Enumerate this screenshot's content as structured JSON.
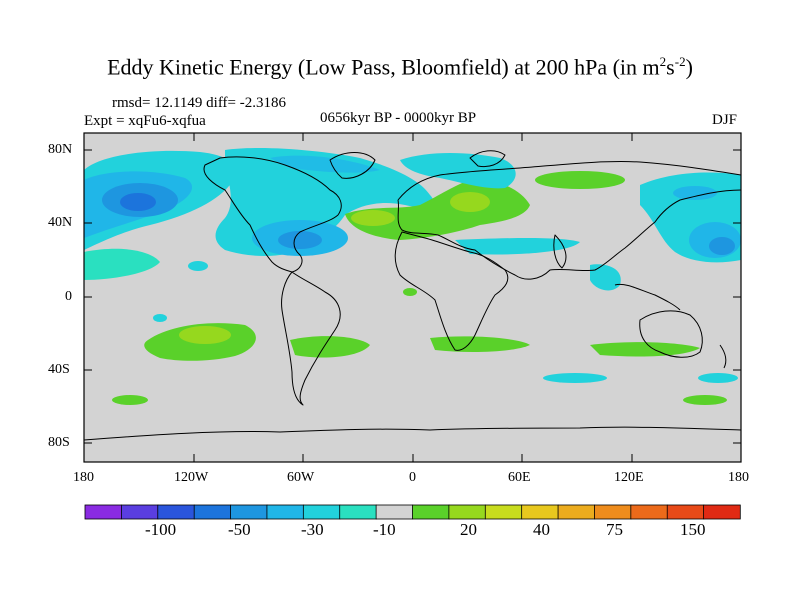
{
  "title": {
    "main": "Eddy Kinetic Energy (Low Pass, Bloomfield) at 200 hPa (in m",
    "exp1": "2",
    "unit2": "s",
    "exp2": "-2",
    "close": ")"
  },
  "header": {
    "stats": "rmsd= 12.1149 diff= -2.3186",
    "expt": "Expt = xqFu6-xqfua",
    "period": "0656kyr BP - 0000kyr BP",
    "season": "DJF"
  },
  "axes": {
    "y_ticks": [
      "80N",
      "40N",
      "0",
      "40S",
      "80S"
    ],
    "x_ticks": [
      "180",
      "120W",
      "60W",
      "0",
      "60E",
      "120E",
      "180"
    ]
  },
  "colorbar": {
    "colors": [
      "#8a2be2",
      "#5a3ee0",
      "#2a55dc",
      "#1c74dc",
      "#1e96e0",
      "#20b6e8",
      "#22d2dc",
      "#2ae0c0",
      "#d3d3d3",
      "#5ad12a",
      "#96d81e",
      "#c8dc1e",
      "#e8c81e",
      "#ecac1e",
      "#ee8c1c",
      "#ec6a1a",
      "#e84a18",
      "#e02a14"
    ],
    "labels": [
      "-100",
      "-50",
      "-30",
      "-10",
      "20",
      "40",
      "75",
      "150"
    ]
  },
  "chart_data": {
    "type": "heatmap",
    "title": "Eddy Kinetic Energy (Low Pass, Bloomfield) at 200 hPa (in m2s-2)",
    "variable": "Eddy Kinetic Energy difference",
    "units": "m2 s-2",
    "level_hPa": 200,
    "season": "DJF",
    "experiment": "xqFu6-xqfua",
    "period": "0656kyr BP - 0000kyr BP",
    "rmsd": 12.1149,
    "diff": -2.3186,
    "x_range_lon": [
      -180,
      180
    ],
    "y_range_lat": [
      -90,
      90
    ],
    "contour_levels": [
      -150,
      -100,
      -75,
      -50,
      -40,
      -30,
      -20,
      -10,
      -5,
      5,
      10,
      20,
      30,
      40,
      50,
      75,
      100,
      150
    ],
    "colorbar_labels": [
      -100,
      -50,
      -30,
      -10,
      20,
      40,
      75,
      150
    ]
  }
}
